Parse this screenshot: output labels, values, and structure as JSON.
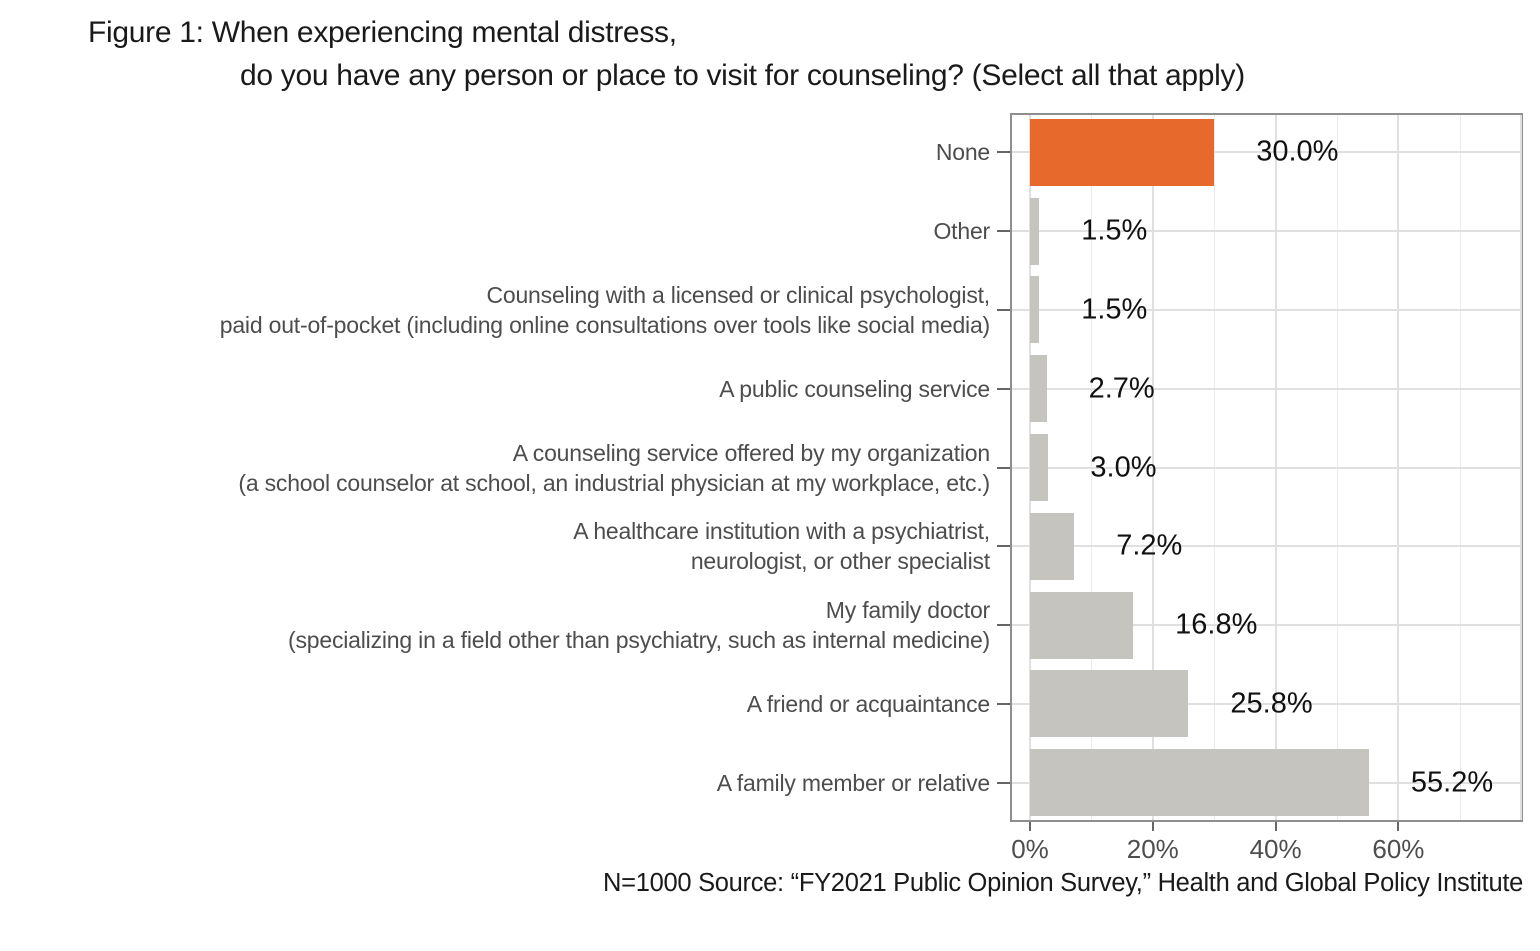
{
  "title": {
    "line1": "Figure 1: When experiencing mental distress,",
    "line2": "do you have any person or place to visit for counseling? (Select all that apply)"
  },
  "source_note": "N=1000 Source: “FY2021 Public Opinion Survey,” Health and Global Policy Institute",
  "colors": {
    "highlight_bar": "#e8692c",
    "default_bar": "#c6c4be",
    "panel_border": "#8e8e8e",
    "grid_major": "#e0e0e0",
    "grid_minor": "#ebebeb",
    "axis_text": "#4d4d4d",
    "value_text": "#111111"
  },
  "chart_data": {
    "type": "bar",
    "orientation": "horizontal",
    "title": "Figure 1: When experiencing mental distress, do you have any person or place to visit for counseling? (Select all that apply)",
    "xlabel": "",
    "ylabel": "",
    "legend": "none",
    "grid": "vertical major+minor, horizontal at category centers",
    "xlim": [
      0,
      80
    ],
    "x_tick_values": [
      0,
      20,
      40,
      60
    ],
    "x_tick_labels": [
      "0%",
      "20%",
      "40%",
      "60%"
    ],
    "categories": [
      [
        "None"
      ],
      [
        "Other"
      ],
      [
        "Counseling with a licensed or clinical psychologist,",
        "paid out-of-pocket (including online consultations over tools like social media)"
      ],
      [
        "A public counseling service"
      ],
      [
        "A counseling service offered by my organization",
        "(a school counselor at school, an industrial physician at my workplace, etc.)"
      ],
      [
        "A healthcare institution with a psychiatrist,",
        "neurologist, or other specialist"
      ],
      [
        "My family doctor",
        "(specializing in a field other than psychiatry, such as internal medicine)"
      ],
      [
        "A friend or acquaintance"
      ],
      [
        "A family member or relative"
      ]
    ],
    "values": [
      30.0,
      1.5,
      1.5,
      2.7,
      3.0,
      7.2,
      16.8,
      25.8,
      55.2
    ],
    "value_labels": [
      "30.0%",
      "1.5%",
      "1.5%",
      "2.7%",
      "3.0%",
      "7.2%",
      "16.8%",
      "25.8%",
      "55.2%"
    ],
    "bar_colors": [
      "#e8692c",
      "#c6c4be",
      "#c6c4be",
      "#c6c4be",
      "#c6c4be",
      "#c6c4be",
      "#c6c4be",
      "#c6c4be",
      "#c6c4be"
    ]
  }
}
